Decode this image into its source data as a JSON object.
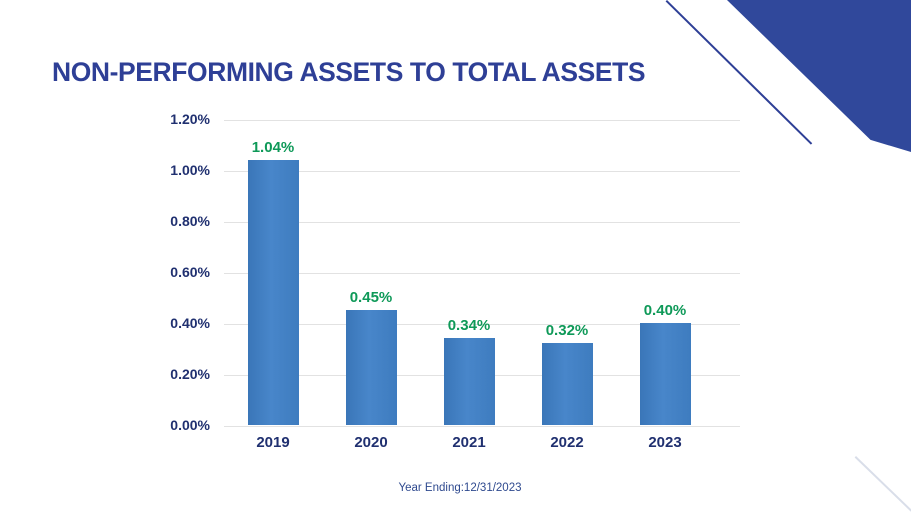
{
  "slide": {
    "title": "NON-PERFORMING ASSETS TO TOTAL ASSETS",
    "footer": "Year Ending:12/31/2023"
  },
  "colors": {
    "accent_blue": "#2E3F96",
    "corner_triangle_blue": "#30489B",
    "bar_blue": "#3F7EC1",
    "value_label_green": "#0E9958",
    "axis_label_navy": "#203070",
    "gridline_gray": "#E2E2E2"
  },
  "chart_data": {
    "type": "bar",
    "title": "NON-PERFORMING ASSETS TO TOTAL ASSETS",
    "categories": [
      "2019",
      "2020",
      "2021",
      "2022",
      "2023"
    ],
    "values": [
      1.04,
      0.45,
      0.34,
      0.32,
      0.4
    ],
    "value_labels": [
      "1.04%",
      "0.45%",
      "0.34%",
      "0.32%",
      "0.40%"
    ],
    "y_ticks": [
      "1.20%",
      "1.00%",
      "0.80%",
      "0.60%",
      "0.40%",
      "0.20%",
      "0.00%"
    ],
    "xlabel": "",
    "ylabel": "",
    "ylim": [
      0,
      1.2
    ],
    "grid": true,
    "legend": false,
    "caption": "Year Ending:12/31/2023"
  }
}
